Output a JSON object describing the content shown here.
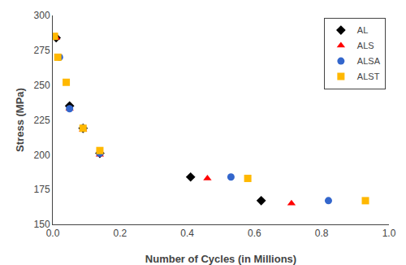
{
  "chart_data": {
    "type": "scatter",
    "xlabel": "Number of Cycles (in Millions)",
    "ylabel": "Stress (MPa)",
    "xlim": [
      0,
      1.0
    ],
    "ylim": [
      150,
      300
    ],
    "xticks": [
      {
        "value": 0,
        "label": "0.0"
      },
      0.2,
      0.4,
      0.6,
      0.8,
      {
        "value": 1.0,
        "label": "1.0"
      }
    ],
    "yticks": [
      150,
      175,
      200,
      225,
      250,
      275,
      300
    ],
    "grid": false,
    "legend": "upper right",
    "series": [
      {
        "name": "AL",
        "color": "black",
        "marker": "diamond",
        "x": [
          0.01,
          0.05,
          0.09,
          0.14,
          0.41,
          0.62
        ],
        "values": [
          284,
          235,
          219,
          201,
          184,
          167
        ]
      },
      {
        "name": "ALS",
        "color": "red",
        "marker": "triangle-up",
        "x": [
          0.01,
          0.05,
          0.09,
          0.14,
          0.46,
          0.71
        ],
        "values": [
          284,
          233,
          218,
          200,
          183,
          165
        ]
      },
      {
        "name": "ALSA",
        "color": "#3366CC",
        "marker": "circle",
        "x": [
          0.02,
          0.05,
          0.09,
          0.14,
          0.53,
          0.82
        ],
        "values": [
          270,
          233,
          219,
          201,
          184,
          167
        ]
      },
      {
        "name": "ALST",
        "color": "#FFB800",
        "marker": "square",
        "x": [
          0.005,
          0.015,
          0.04,
          0.09,
          0.14,
          0.58,
          0.93
        ],
        "values": [
          285,
          270,
          252,
          219,
          203,
          183,
          167
        ]
      }
    ]
  }
}
